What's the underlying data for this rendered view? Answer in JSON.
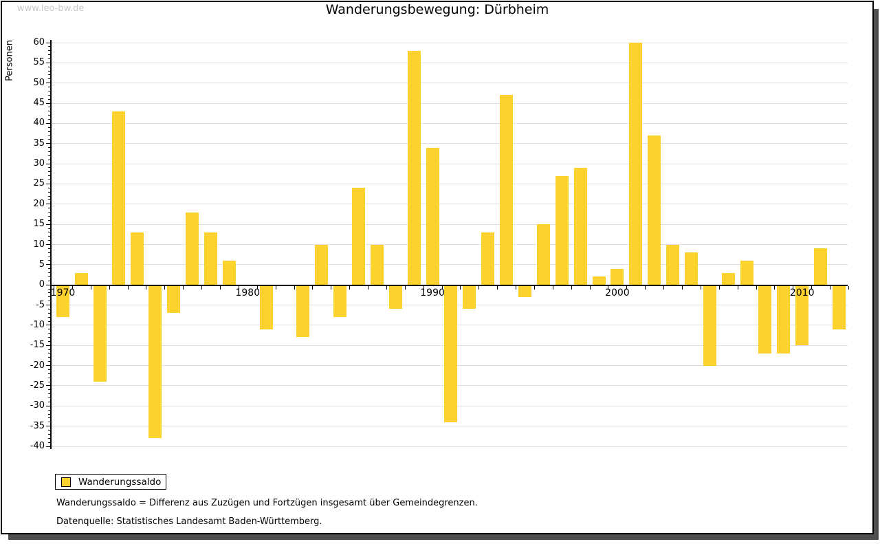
{
  "watermark": "www.leo-bw.de",
  "header": {
    "title": "Wanderungsbewegung: Dürbheim"
  },
  "legend": {
    "label": "Wanderungssaldo"
  },
  "footnotes": [
    "Wanderungssaldo = Differenz aus Zuzügen und Fortzügen insgesamt über Gemeindegrenzen.",
    "Datenquelle: Statistisches Landesamt Baden-Württemberg."
  ],
  "colors": {
    "bar": "#fcd32e",
    "grid": "#e0e0e0",
    "axis": "#000000",
    "watermark": "#c9c9c9",
    "frame_shadow": "#4f4f4f"
  },
  "chart_data": {
    "type": "bar",
    "title": "Wanderungsbewegung: Dürbheim",
    "xlabel": "",
    "ylabel": "Personen",
    "ylim": [
      -40,
      60
    ],
    "ytick_step": 5,
    "grid": "horizontal",
    "legend_position": "bottom-left",
    "series_name": "Wanderungssaldo",
    "bar_color": "#fcd32e",
    "x": [
      1970,
      1971,
      1972,
      1973,
      1974,
      1975,
      1976,
      1977,
      1978,
      1979,
      1980,
      1981,
      1982,
      1983,
      1984,
      1985,
      1986,
      1987,
      1988,
      1989,
      1990,
      1991,
      1992,
      1993,
      1994,
      1995,
      1996,
      1997,
      1998,
      1999,
      2000,
      2001,
      2002,
      2003,
      2004,
      2005,
      2006,
      2007,
      2008,
      2009,
      2010,
      2011,
      2012
    ],
    "values": [
      -8,
      3,
      -24,
      43,
      13,
      -38,
      -7,
      18,
      13,
      6,
      0,
      -11,
      0,
      -13,
      10,
      -8,
      24,
      10,
      -6,
      58,
      34,
      -34,
      -6,
      13,
      47,
      -3,
      15,
      27,
      29,
      2,
      4,
      60,
      37,
      10,
      8,
      -20,
      3,
      6,
      -17,
      -17,
      -15,
      9,
      -11
    ],
    "xtick_labels": [
      "1970",
      "1980",
      "1990",
      "2000",
      "2010"
    ]
  }
}
